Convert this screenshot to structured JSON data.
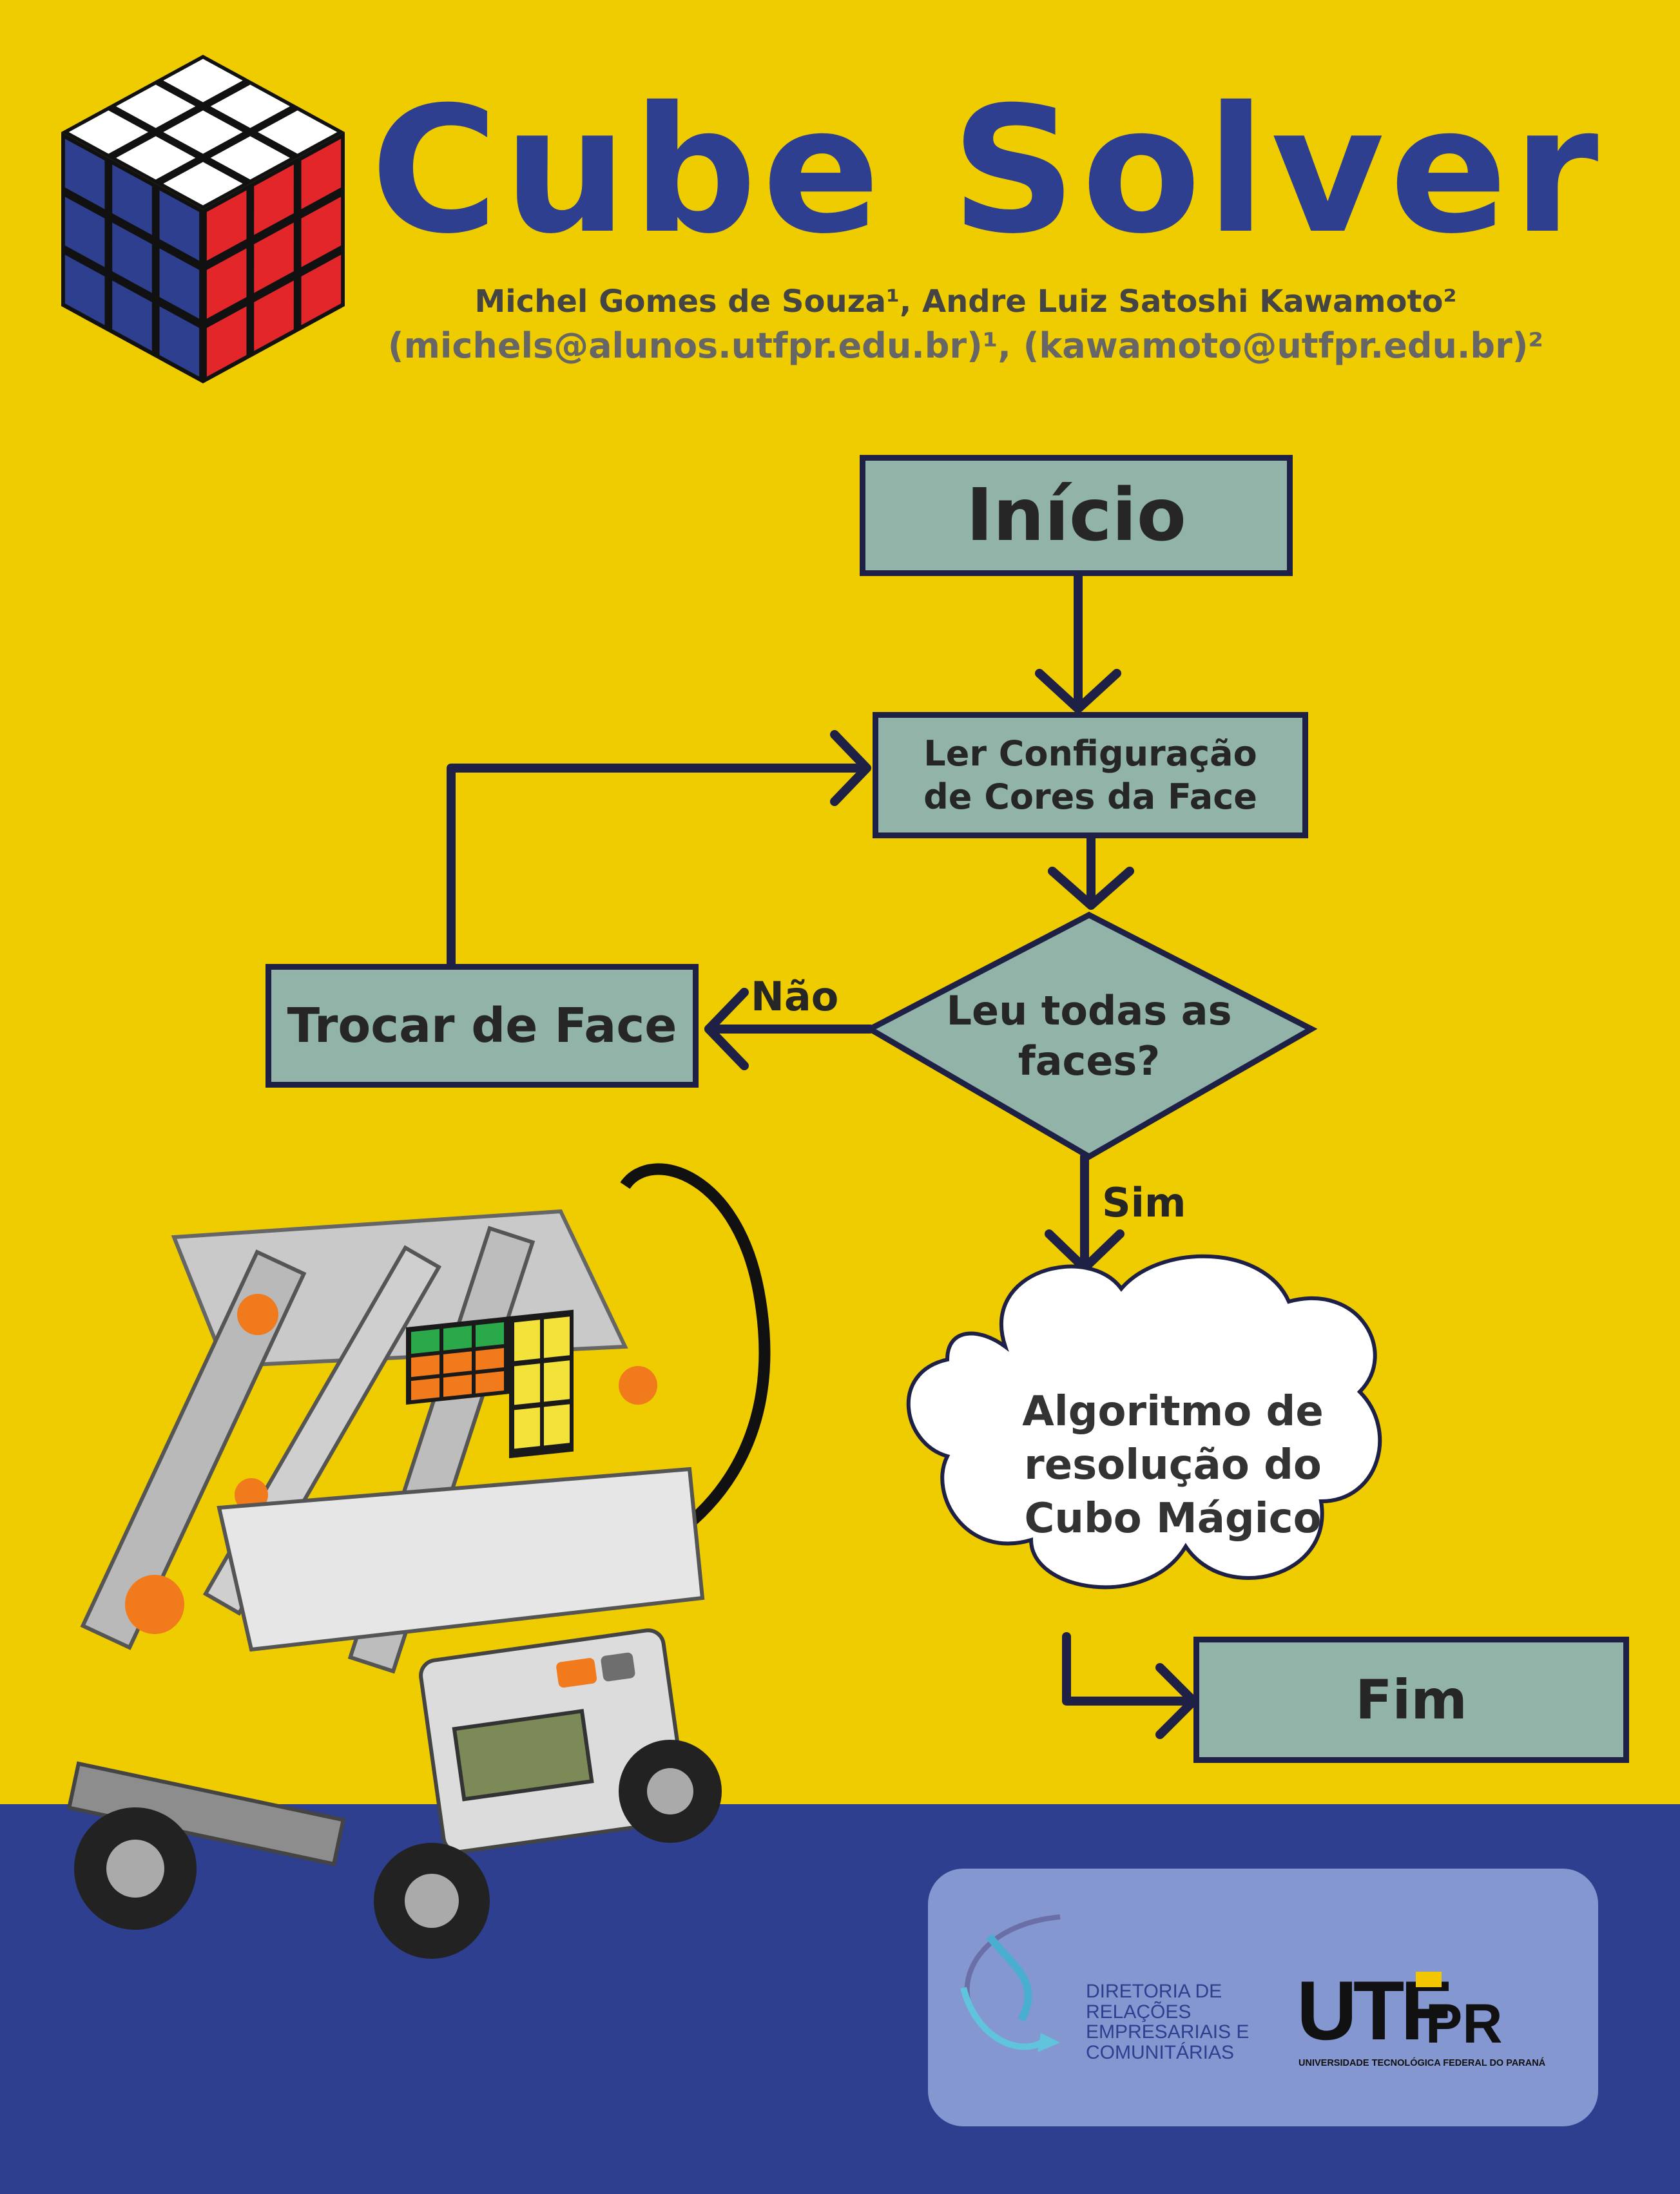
{
  "header": {
    "title": "Cube Solver",
    "authors": "Michel Gomes de Souza¹, Andre Luiz Satoshi Kawamoto²",
    "emails": "(michels@alunos.utfpr.edu.br)¹, (kawamoto@utfpr.edu.br)²"
  },
  "flowchart": {
    "start": "Início",
    "read_step": "Ler Configuração de Cores da Face",
    "decision": "Leu todas as faces?",
    "no_label": "Não",
    "yes_label": "Sim",
    "change_face": "Trocar de Face",
    "algorithm": "Algoritmo de resolução do Cubo Mágico",
    "end": "Fim"
  },
  "footer": {
    "directorate": "DIRETORIA DE\nRELAÇÕES\nEMPRESARIAIS E\nCOMUNITÁRIAS",
    "utfpr_main": "UTF",
    "utfpr_pr": "PR",
    "utfpr_full": "UNIVERSIDADE TECNOLÓGICA FEDERAL DO PARANÁ"
  },
  "colors": {
    "yellow": "#efcc00",
    "blue": "#2d3f8e",
    "box_fill": "#91b3a8",
    "box_border": "#1e2145",
    "cube_red": "#e2262a",
    "cube_white": "#ffffff"
  },
  "icons": {
    "logo": "rubiks-cube-icon",
    "robot": "lego-robot-photo",
    "directorate_logo": "swirl-arrow-icon"
  }
}
